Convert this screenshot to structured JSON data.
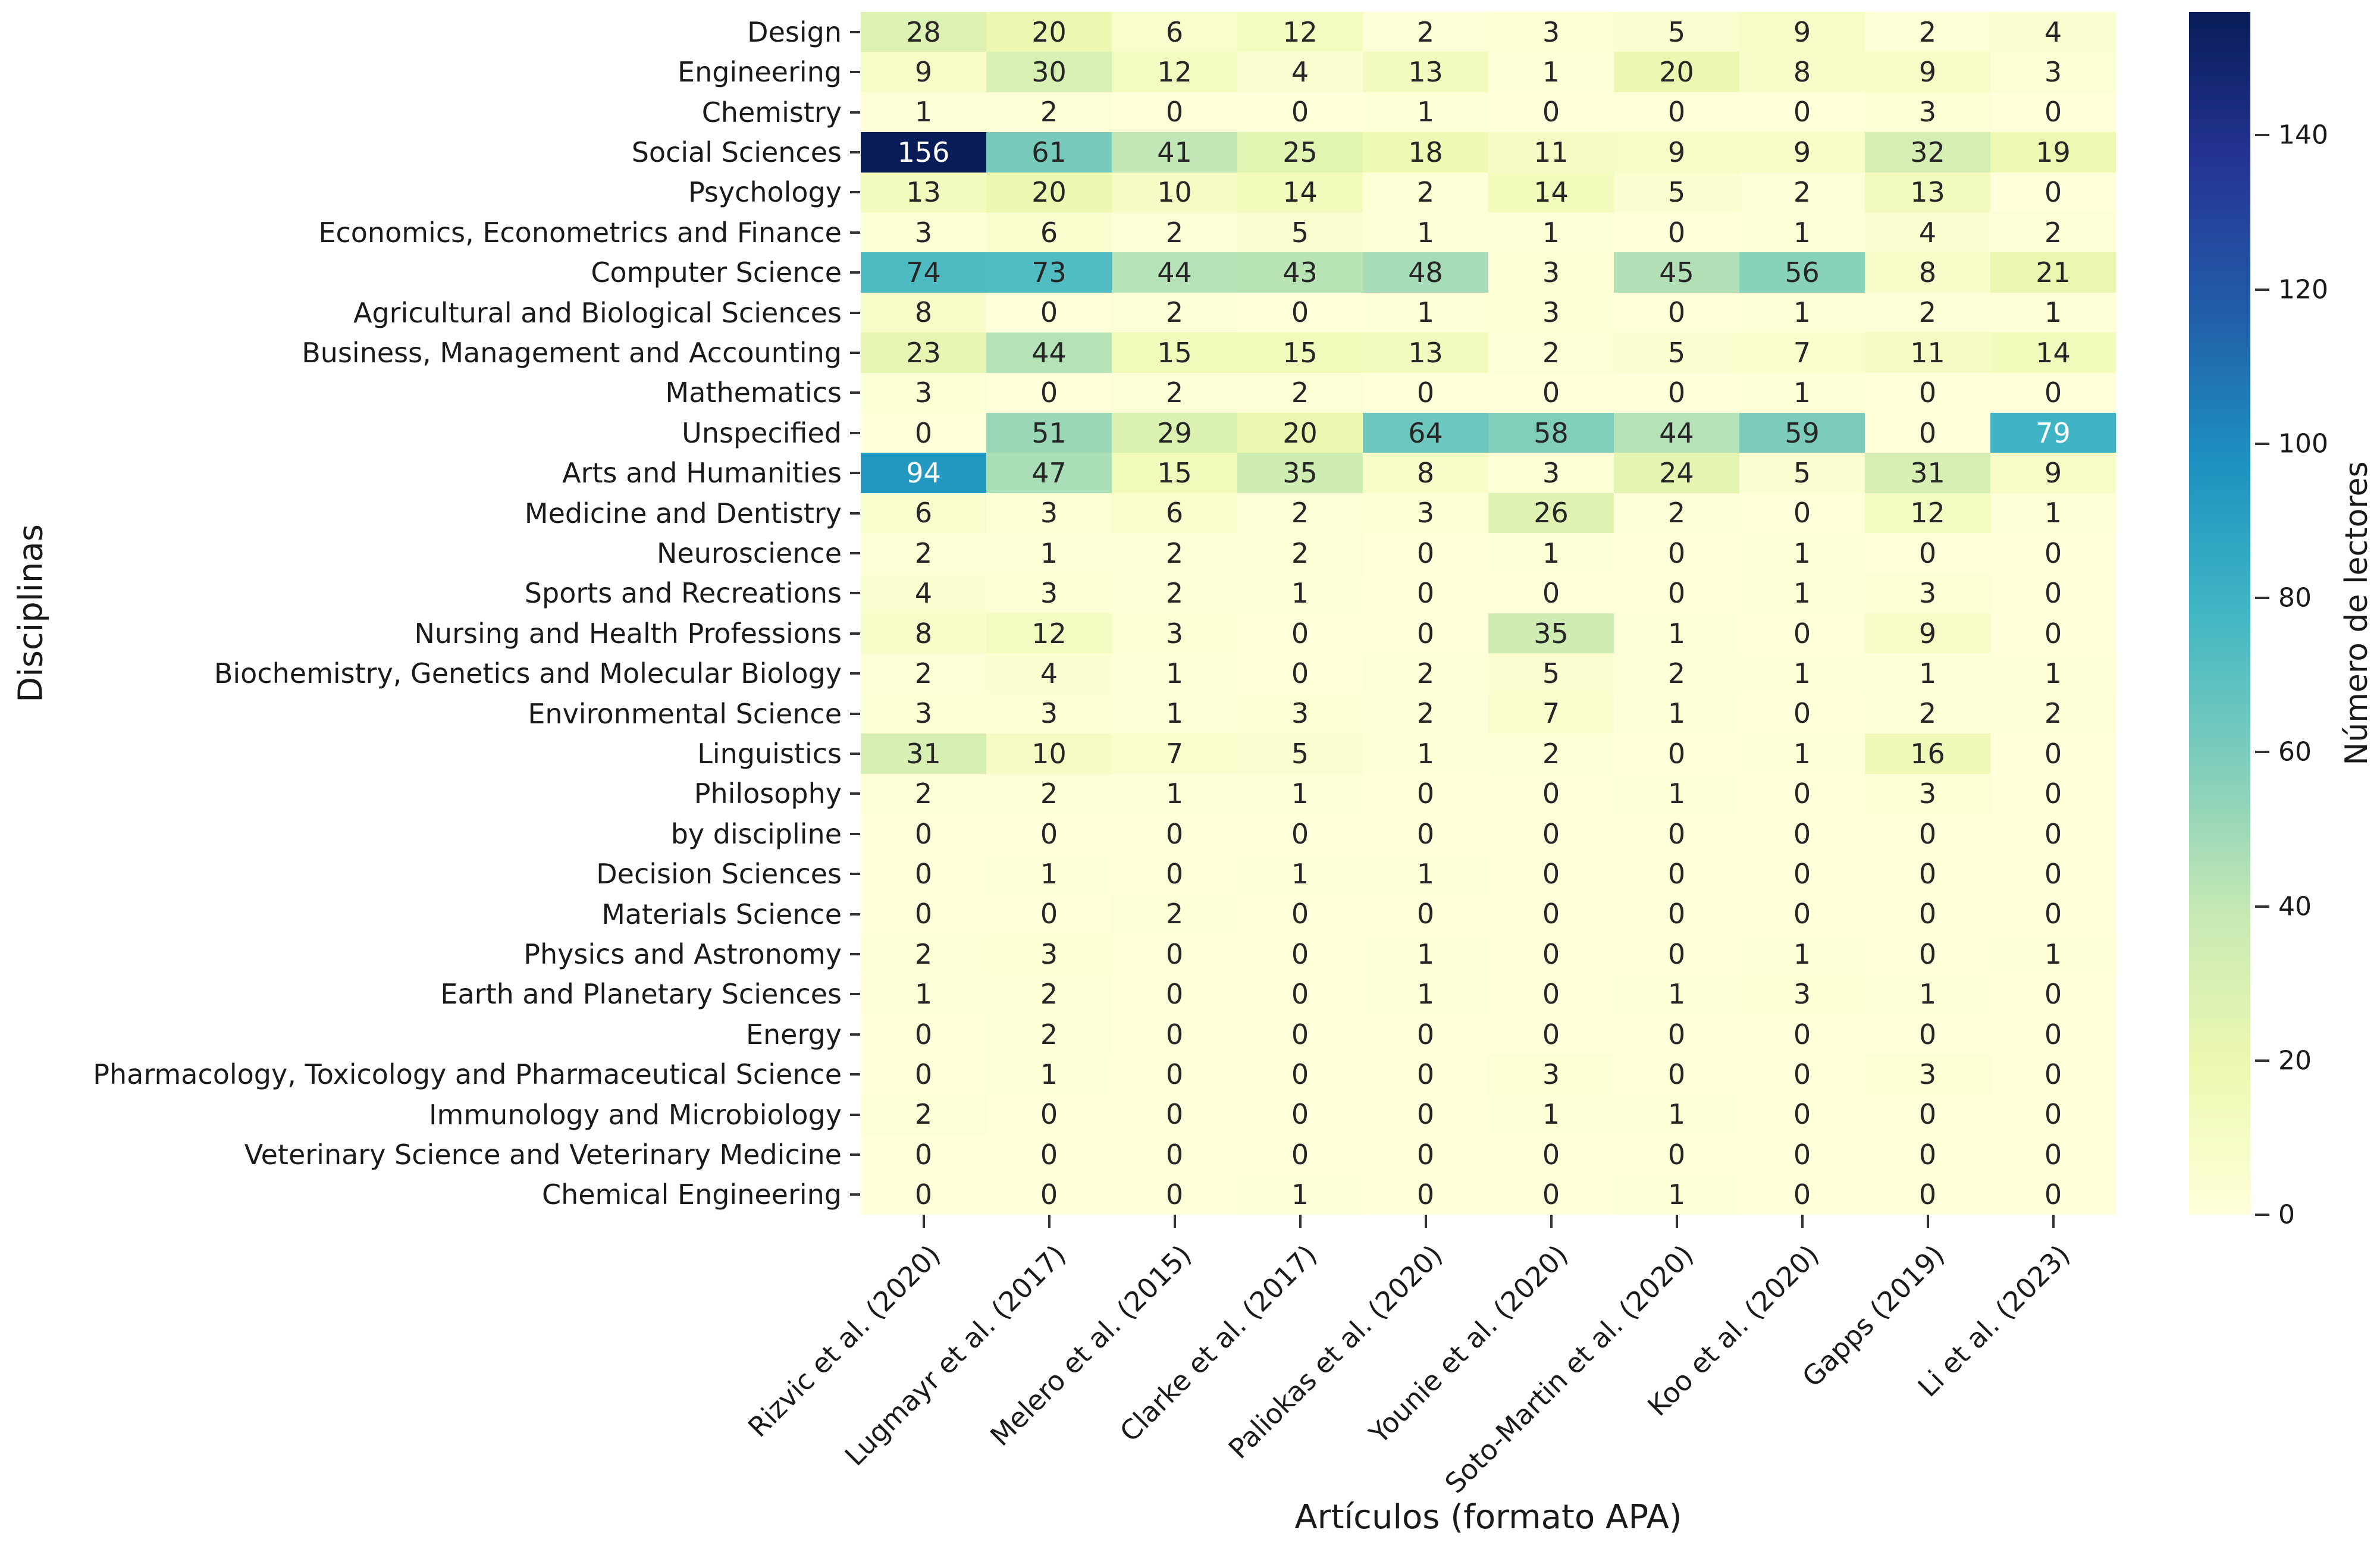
{
  "chart_data": {
    "type": "heatmap",
    "title": "",
    "xlabel": "Artículos (formato APA)",
    "ylabel": "Disciplinas",
    "grid": false,
    "colorbar": {
      "label": "Número de lectores",
      "ticks": [
        0,
        20,
        40,
        60,
        80,
        100,
        120,
        140
      ],
      "vmin": 0,
      "vmax": 156
    },
    "colormap": {
      "name": "YlGnBu",
      "stops": [
        "#ffffd9",
        "#edf8b1",
        "#c7e9b4",
        "#7fcdbb",
        "#41b6c4",
        "#1d91c0",
        "#225ea8",
        "#253494",
        "#081d58"
      ]
    },
    "annot_colors": {
      "dark": "#262626",
      "light": "#ffffff"
    },
    "x_categories": [
      "Rizvic et al. (2020)",
      "Lugmayr et al. (2017)",
      "Melero et al. (2015)",
      "Clarke et al. (2017)",
      "Paliokas et al. (2020)",
      "Younie et al. (2020)",
      "Soto-Martin et al. (2020)",
      "Koo et al. (2020)",
      "Gapps (2019)",
      "Li et al. (2023)"
    ],
    "y_categories": [
      "Design",
      "Engineering",
      "Chemistry",
      "Social Sciences",
      "Psychology",
      "Economics, Econometrics and Finance",
      "Computer Science",
      "Agricultural and Biological Sciences",
      "Business, Management and Accounting",
      "Mathematics",
      "Unspecified",
      "Arts and Humanities",
      "Medicine and Dentistry",
      "Neuroscience",
      "Sports and Recreations",
      "Nursing and Health Professions",
      "Biochemistry, Genetics and Molecular Biology",
      "Environmental Science",
      "Linguistics",
      "Philosophy",
      "by discipline",
      "Decision Sciences",
      "Materials Science",
      "Physics and Astronomy",
      "Earth and Planetary Sciences",
      "Energy",
      "Pharmacology, Toxicology and Pharmaceutical Science",
      "Immunology and Microbiology",
      "Veterinary Science and Veterinary Medicine",
      "Chemical Engineering"
    ],
    "values": [
      [
        28,
        20,
        6,
        12,
        2,
        3,
        5,
        9,
        2,
        4
      ],
      [
        9,
        30,
        12,
        4,
        13,
        1,
        20,
        8,
        9,
        3
      ],
      [
        1,
        2,
        0,
        0,
        1,
        0,
        0,
        0,
        3,
        0
      ],
      [
        156,
        61,
        41,
        25,
        18,
        11,
        9,
        9,
        32,
        19
      ],
      [
        13,
        20,
        10,
        14,
        2,
        14,
        5,
        2,
        13,
        0
      ],
      [
        3,
        6,
        2,
        5,
        1,
        1,
        0,
        1,
        4,
        2
      ],
      [
        74,
        73,
        44,
        43,
        48,
        3,
        45,
        56,
        8,
        21
      ],
      [
        8,
        0,
        2,
        0,
        1,
        3,
        0,
        1,
        2,
        1
      ],
      [
        23,
        44,
        15,
        15,
        13,
        2,
        5,
        7,
        11,
        14
      ],
      [
        3,
        0,
        2,
        2,
        0,
        0,
        0,
        1,
        0,
        0
      ],
      [
        0,
        51,
        29,
        20,
        64,
        58,
        44,
        59,
        0,
        79
      ],
      [
        94,
        47,
        15,
        35,
        8,
        3,
        24,
        5,
        31,
        9
      ],
      [
        6,
        3,
        6,
        2,
        3,
        26,
        2,
        0,
        12,
        1
      ],
      [
        2,
        1,
        2,
        2,
        0,
        1,
        0,
        1,
        0,
        0
      ],
      [
        4,
        3,
        2,
        1,
        0,
        0,
        0,
        1,
        3,
        0
      ],
      [
        8,
        12,
        3,
        0,
        0,
        35,
        1,
        0,
        9,
        0
      ],
      [
        2,
        4,
        1,
        0,
        2,
        5,
        2,
        1,
        1,
        1
      ],
      [
        3,
        3,
        1,
        3,
        2,
        7,
        1,
        0,
        2,
        2
      ],
      [
        31,
        10,
        7,
        5,
        1,
        2,
        0,
        1,
        16,
        0
      ],
      [
        2,
        2,
        1,
        1,
        0,
        0,
        1,
        0,
        3,
        0
      ],
      [
        0,
        0,
        0,
        0,
        0,
        0,
        0,
        0,
        0,
        0
      ],
      [
        0,
        1,
        0,
        1,
        1,
        0,
        0,
        0,
        0,
        0
      ],
      [
        0,
        0,
        2,
        0,
        0,
        0,
        0,
        0,
        0,
        0
      ],
      [
        2,
        3,
        0,
        0,
        1,
        0,
        0,
        1,
        0,
        1
      ],
      [
        1,
        2,
        0,
        0,
        1,
        0,
        1,
        3,
        1,
        0
      ],
      [
        0,
        2,
        0,
        0,
        0,
        0,
        0,
        0,
        0,
        0
      ],
      [
        0,
        1,
        0,
        0,
        0,
        3,
        0,
        0,
        3,
        0
      ],
      [
        2,
        0,
        0,
        0,
        0,
        1,
        1,
        0,
        0,
        0
      ],
      [
        0,
        0,
        0,
        0,
        0,
        0,
        0,
        0,
        0,
        0
      ],
      [
        0,
        0,
        0,
        1,
        0,
        0,
        1,
        0,
        0,
        0
      ]
    ]
  }
}
